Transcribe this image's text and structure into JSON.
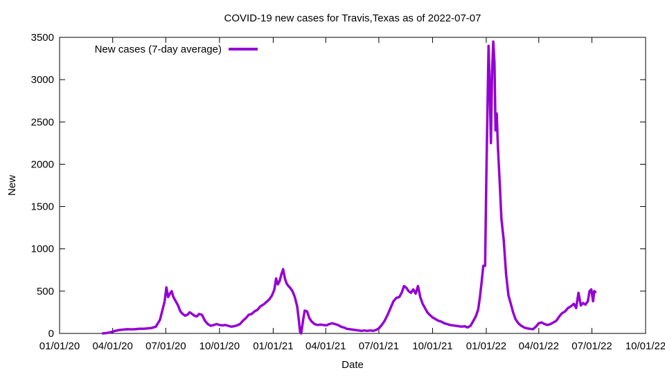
{
  "chart_data": {
    "type": "line",
    "title": "COVID-19 new cases for Travis,Texas as of 2022-07-07",
    "xlabel": "Date",
    "ylabel": "New",
    "xlim": [
      "2020-01-01",
      "2022-10-01"
    ],
    "ylim": [
      0,
      3500
    ],
    "x_ticks": [
      "2020-01-01",
      "2020-04-01",
      "2020-07-01",
      "2020-10-01",
      "2021-01-01",
      "2021-04-01",
      "2021-07-01",
      "2021-10-01",
      "2022-01-01",
      "2022-04-01",
      "2022-07-01",
      "2022-10-01"
    ],
    "x_tick_labels": [
      "01/01/20",
      "04/01/20",
      "07/01/20",
      "10/01/20",
      "01/01/21",
      "04/01/21",
      "07/01/21",
      "10/01/21",
      "01/01/22",
      "04/01/22",
      "07/01/22",
      "10/01/22"
    ],
    "y_ticks": [
      0,
      500,
      1000,
      1500,
      2000,
      2500,
      3000,
      3500
    ],
    "y_tick_labels": [
      "0",
      "500",
      "1000",
      "1500",
      "2000",
      "2500",
      "3000",
      "3500"
    ],
    "legend_position": "top-left",
    "grid": false,
    "series": [
      {
        "name": "New cases (7-day average)",
        "color": "#9400d3",
        "points": [
          [
            "2020-03-15",
            0
          ],
          [
            "2020-03-22",
            5
          ],
          [
            "2020-03-29",
            15
          ],
          [
            "2020-04-05",
            30
          ],
          [
            "2020-04-12",
            40
          ],
          [
            "2020-04-19",
            45
          ],
          [
            "2020-04-26",
            50
          ],
          [
            "2020-05-03",
            48
          ],
          [
            "2020-05-10",
            50
          ],
          [
            "2020-05-17",
            55
          ],
          [
            "2020-05-24",
            55
          ],
          [
            "2020-05-31",
            60
          ],
          [
            "2020-06-07",
            65
          ],
          [
            "2020-06-14",
            80
          ],
          [
            "2020-06-21",
            160
          ],
          [
            "2020-06-25",
            270
          ],
          [
            "2020-06-29",
            380
          ],
          [
            "2020-07-02",
            545
          ],
          [
            "2020-07-05",
            430
          ],
          [
            "2020-07-08",
            470
          ],
          [
            "2020-07-11",
            500
          ],
          [
            "2020-07-14",
            430
          ],
          [
            "2020-07-18",
            380
          ],
          [
            "2020-07-22",
            330
          ],
          [
            "2020-07-26",
            260
          ],
          [
            "2020-07-30",
            230
          ],
          [
            "2020-08-03",
            210
          ],
          [
            "2020-08-07",
            220
          ],
          [
            "2020-08-11",
            250
          ],
          [
            "2020-08-15",
            230
          ],
          [
            "2020-08-19",
            210
          ],
          [
            "2020-08-23",
            200
          ],
          [
            "2020-08-27",
            230
          ],
          [
            "2020-09-01",
            220
          ],
          [
            "2020-09-06",
            150
          ],
          [
            "2020-09-11",
            110
          ],
          [
            "2020-09-16",
            90
          ],
          [
            "2020-09-21",
            100
          ],
          [
            "2020-09-26",
            110
          ],
          [
            "2020-10-01",
            100
          ],
          [
            "2020-10-06",
            95
          ],
          [
            "2020-10-11",
            100
          ],
          [
            "2020-10-16",
            90
          ],
          [
            "2020-10-21",
            80
          ],
          [
            "2020-10-26",
            85
          ],
          [
            "2020-10-31",
            95
          ],
          [
            "2020-11-05",
            110
          ],
          [
            "2020-11-10",
            150
          ],
          [
            "2020-11-15",
            180
          ],
          [
            "2020-11-20",
            220
          ],
          [
            "2020-11-25",
            230
          ],
          [
            "2020-11-30",
            260
          ],
          [
            "2020-12-05",
            280
          ],
          [
            "2020-12-10",
            320
          ],
          [
            "2020-12-15",
            340
          ],
          [
            "2020-12-20",
            370
          ],
          [
            "2020-12-25",
            400
          ],
          [
            "2020-12-30",
            450
          ],
          [
            "2021-01-03",
            520
          ],
          [
            "2021-01-06",
            650
          ],
          [
            "2021-01-09",
            580
          ],
          [
            "2021-01-12",
            620
          ],
          [
            "2021-01-15",
            700
          ],
          [
            "2021-01-18",
            760
          ],
          [
            "2021-01-21",
            650
          ],
          [
            "2021-01-24",
            590
          ],
          [
            "2021-01-27",
            560
          ],
          [
            "2021-01-30",
            540
          ],
          [
            "2021-02-03",
            500
          ],
          [
            "2021-02-07",
            430
          ],
          [
            "2021-02-11",
            320
          ],
          [
            "2021-02-14",
            150
          ],
          [
            "2021-02-16",
            20
          ],
          [
            "2021-02-18",
            0
          ],
          [
            "2021-02-21",
            150
          ],
          [
            "2021-02-24",
            270
          ],
          [
            "2021-02-28",
            260
          ],
          [
            "2021-03-04",
            180
          ],
          [
            "2021-03-08",
            140
          ],
          [
            "2021-03-13",
            110
          ],
          [
            "2021-03-18",
            100
          ],
          [
            "2021-03-23",
            105
          ],
          [
            "2021-03-28",
            100
          ],
          [
            "2021-04-02",
            95
          ],
          [
            "2021-04-07",
            110
          ],
          [
            "2021-04-12",
            120
          ],
          [
            "2021-04-17",
            110
          ],
          [
            "2021-04-22",
            100
          ],
          [
            "2021-04-27",
            80
          ],
          [
            "2021-05-02",
            70
          ],
          [
            "2021-05-07",
            55
          ],
          [
            "2021-05-12",
            50
          ],
          [
            "2021-05-17",
            45
          ],
          [
            "2021-05-22",
            40
          ],
          [
            "2021-05-27",
            35
          ],
          [
            "2021-06-01",
            30
          ],
          [
            "2021-06-06",
            35
          ],
          [
            "2021-06-11",
            30
          ],
          [
            "2021-06-16",
            35
          ],
          [
            "2021-06-21",
            30
          ],
          [
            "2021-06-26",
            40
          ],
          [
            "2021-07-01",
            60
          ],
          [
            "2021-07-06",
            100
          ],
          [
            "2021-07-11",
            150
          ],
          [
            "2021-07-16",
            220
          ],
          [
            "2021-07-21",
            300
          ],
          [
            "2021-07-26",
            380
          ],
          [
            "2021-07-31",
            420
          ],
          [
            "2021-08-05",
            430
          ],
          [
            "2021-08-09",
            480
          ],
          [
            "2021-08-13",
            560
          ],
          [
            "2021-08-17",
            540
          ],
          [
            "2021-08-21",
            500
          ],
          [
            "2021-08-25",
            480
          ],
          [
            "2021-08-29",
            520
          ],
          [
            "2021-09-02",
            470
          ],
          [
            "2021-09-06",
            560
          ],
          [
            "2021-09-10",
            430
          ],
          [
            "2021-09-14",
            350
          ],
          [
            "2021-09-18",
            300
          ],
          [
            "2021-09-22",
            250
          ],
          [
            "2021-09-26",
            220
          ],
          [
            "2021-10-01",
            190
          ],
          [
            "2021-10-06",
            170
          ],
          [
            "2021-10-11",
            150
          ],
          [
            "2021-10-16",
            140
          ],
          [
            "2021-10-21",
            120
          ],
          [
            "2021-10-26",
            110
          ],
          [
            "2021-10-31",
            100
          ],
          [
            "2021-11-05",
            95
          ],
          [
            "2021-11-10",
            90
          ],
          [
            "2021-11-15",
            85
          ],
          [
            "2021-11-20",
            80
          ],
          [
            "2021-11-25",
            85
          ],
          [
            "2021-11-30",
            70
          ],
          [
            "2021-12-05",
            90
          ],
          [
            "2021-12-10",
            150
          ],
          [
            "2021-12-14",
            200
          ],
          [
            "2021-12-18",
            280
          ],
          [
            "2021-12-21",
            420
          ],
          [
            "2021-12-24",
            600
          ],
          [
            "2021-12-27",
            800
          ],
          [
            "2021-12-30",
            800
          ],
          [
            "2022-01-01",
            1800
          ],
          [
            "2022-01-03",
            2600
          ],
          [
            "2022-01-05",
            3400
          ],
          [
            "2022-01-07",
            2900
          ],
          [
            "2022-01-09",
            2250
          ],
          [
            "2022-01-11",
            3100
          ],
          [
            "2022-01-13",
            3450
          ],
          [
            "2022-01-15",
            3200
          ],
          [
            "2022-01-17",
            2400
          ],
          [
            "2022-01-19",
            2600
          ],
          [
            "2022-01-21",
            2200
          ],
          [
            "2022-01-24",
            1800
          ],
          [
            "2022-01-27",
            1350
          ],
          [
            "2022-01-31",
            1100
          ],
          [
            "2022-02-04",
            700
          ],
          [
            "2022-02-08",
            450
          ],
          [
            "2022-02-12",
            350
          ],
          [
            "2022-02-16",
            250
          ],
          [
            "2022-02-20",
            170
          ],
          [
            "2022-02-25",
            120
          ],
          [
            "2022-03-02",
            90
          ],
          [
            "2022-03-07",
            70
          ],
          [
            "2022-03-12",
            60
          ],
          [
            "2022-03-17",
            55
          ],
          [
            "2022-03-22",
            50
          ],
          [
            "2022-03-27",
            80
          ],
          [
            "2022-04-01",
            120
          ],
          [
            "2022-04-06",
            130
          ],
          [
            "2022-04-11",
            110
          ],
          [
            "2022-04-16",
            100
          ],
          [
            "2022-04-21",
            110
          ],
          [
            "2022-04-26",
            130
          ],
          [
            "2022-05-01",
            150
          ],
          [
            "2022-05-06",
            200
          ],
          [
            "2022-05-11",
            240
          ],
          [
            "2022-05-16",
            260
          ],
          [
            "2022-05-21",
            300
          ],
          [
            "2022-05-26",
            320
          ],
          [
            "2022-05-31",
            350
          ],
          [
            "2022-06-04",
            300
          ],
          [
            "2022-06-08",
            480
          ],
          [
            "2022-06-12",
            330
          ],
          [
            "2022-06-16",
            360
          ],
          [
            "2022-06-20",
            340
          ],
          [
            "2022-06-24",
            380
          ],
          [
            "2022-06-27",
            500
          ],
          [
            "2022-06-30",
            520
          ],
          [
            "2022-07-03",
            380
          ],
          [
            "2022-07-05",
            500
          ],
          [
            "2022-07-07",
            490
          ]
        ]
      }
    ]
  }
}
